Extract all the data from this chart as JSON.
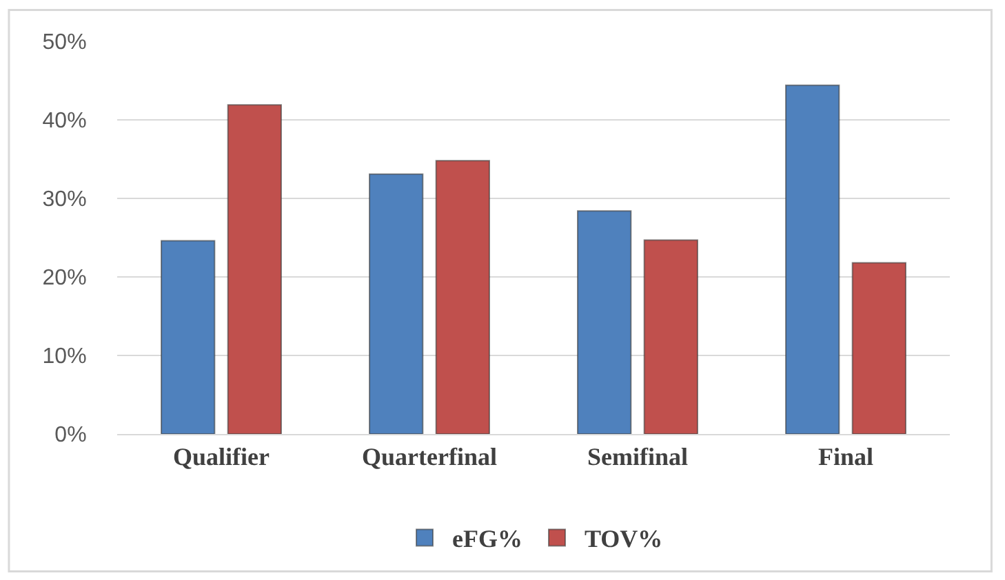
{
  "chart_data": {
    "type": "bar",
    "categories": [
      "Qualifier",
      "Quarterfinal",
      "Semifinal",
      "Final"
    ],
    "series": [
      {
        "name": "eFG%",
        "color": "#4f81bd",
        "values": [
          24.6,
          33.1,
          28.4,
          44.4
        ]
      },
      {
        "name": "TOV%",
        "color": "#c0504d",
        "values": [
          41.9,
          34.8,
          24.7,
          21.8
        ]
      }
    ],
    "ylim": [
      0,
      50
    ],
    "yticks": [
      {
        "value": 0,
        "label": "0%"
      },
      {
        "value": 10,
        "label": "10%"
      },
      {
        "value": 20,
        "label": "20%"
      },
      {
        "value": 30,
        "label": "30%"
      },
      {
        "value": 40,
        "label": "40%"
      },
      {
        "value": 50,
        "label": "50%"
      }
    ],
    "grid": "y",
    "legend": "bottom"
  }
}
